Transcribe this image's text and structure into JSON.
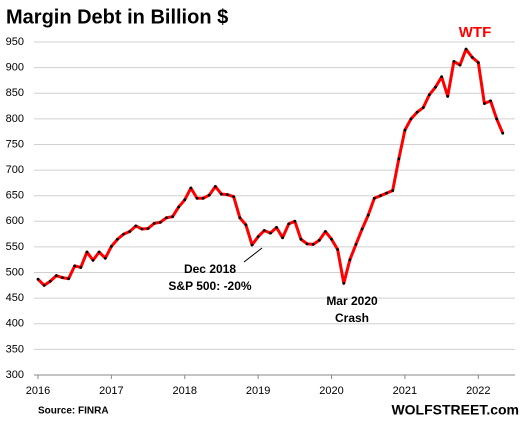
{
  "chart_data": {
    "type": "line",
    "title": "Margin Debt in Billion $",
    "x": [
      2016,
      2016.083,
      2016.167,
      2016.25,
      2016.333,
      2016.417,
      2016.5,
      2016.583,
      2016.667,
      2016.75,
      2016.833,
      2016.917,
      2017,
      2017.083,
      2017.167,
      2017.25,
      2017.333,
      2017.417,
      2017.5,
      2017.583,
      2017.667,
      2017.75,
      2017.833,
      2017.917,
      2018,
      2018.083,
      2018.167,
      2018.25,
      2018.333,
      2018.417,
      2018.5,
      2018.583,
      2018.667,
      2018.75,
      2018.833,
      2018.917,
      2019,
      2019.083,
      2019.167,
      2019.25,
      2019.333,
      2019.417,
      2019.5,
      2019.583,
      2019.667,
      2019.75,
      2019.833,
      2019.917,
      2020,
      2020.083,
      2020.167,
      2020.25,
      2020.333,
      2020.417,
      2020.5,
      2020.583,
      2020.667,
      2020.75,
      2020.833,
      2020.917,
      2021,
      2021.083,
      2021.167,
      2021.25,
      2021.333,
      2021.417,
      2021.5,
      2021.583,
      2021.667,
      2021.75,
      2021.833,
      2021.917,
      2022,
      2022.083,
      2022.167,
      2022.25,
      2022.333
    ],
    "series": [
      {
        "name": "Margin Debt",
        "color": "#ff0000",
        "values": [
          487,
          475,
          483,
          494,
          490,
          488,
          513,
          510,
          540,
          524,
          540,
          528,
          551,
          565,
          575,
          580,
          591,
          585,
          586,
          596,
          598,
          607,
          609,
          628,
          642,
          665,
          645,
          645,
          651,
          668,
          653,
          652,
          648,
          607,
          593,
          554,
          570,
          582,
          577,
          588,
          568,
          595,
          600,
          565,
          556,
          555,
          563,
          580,
          565,
          545,
          479,
          525,
          555,
          585,
          612,
          645,
          650,
          655,
          660,
          722,
          778,
          800,
          813,
          822,
          847,
          862,
          882,
          844,
          912,
          905,
          936,
          920,
          910,
          830,
          835,
          800,
          772
        ]
      }
    ],
    "xlim": [
      2016,
      2022.5
    ],
    "xticks": [
      2016,
      2017,
      2018,
      2019,
      2020,
      2021,
      2022
    ],
    "ylim": [
      300,
      950
    ],
    "yticks": [
      300,
      350,
      400,
      450,
      500,
      550,
      600,
      650,
      700,
      750,
      800,
      850,
      900,
      950
    ],
    "grid": true,
    "annotations": [
      {
        "lines": [
          "Dec 2018",
          "S&P 500:  -20%"
        ]
      },
      {
        "lines": [
          "Mar 2020",
          "Crash"
        ]
      },
      {
        "lines": [
          "WTF"
        ]
      }
    ],
    "source": "Source: FINRA",
    "brand": "WOLFSTREET.com"
  }
}
